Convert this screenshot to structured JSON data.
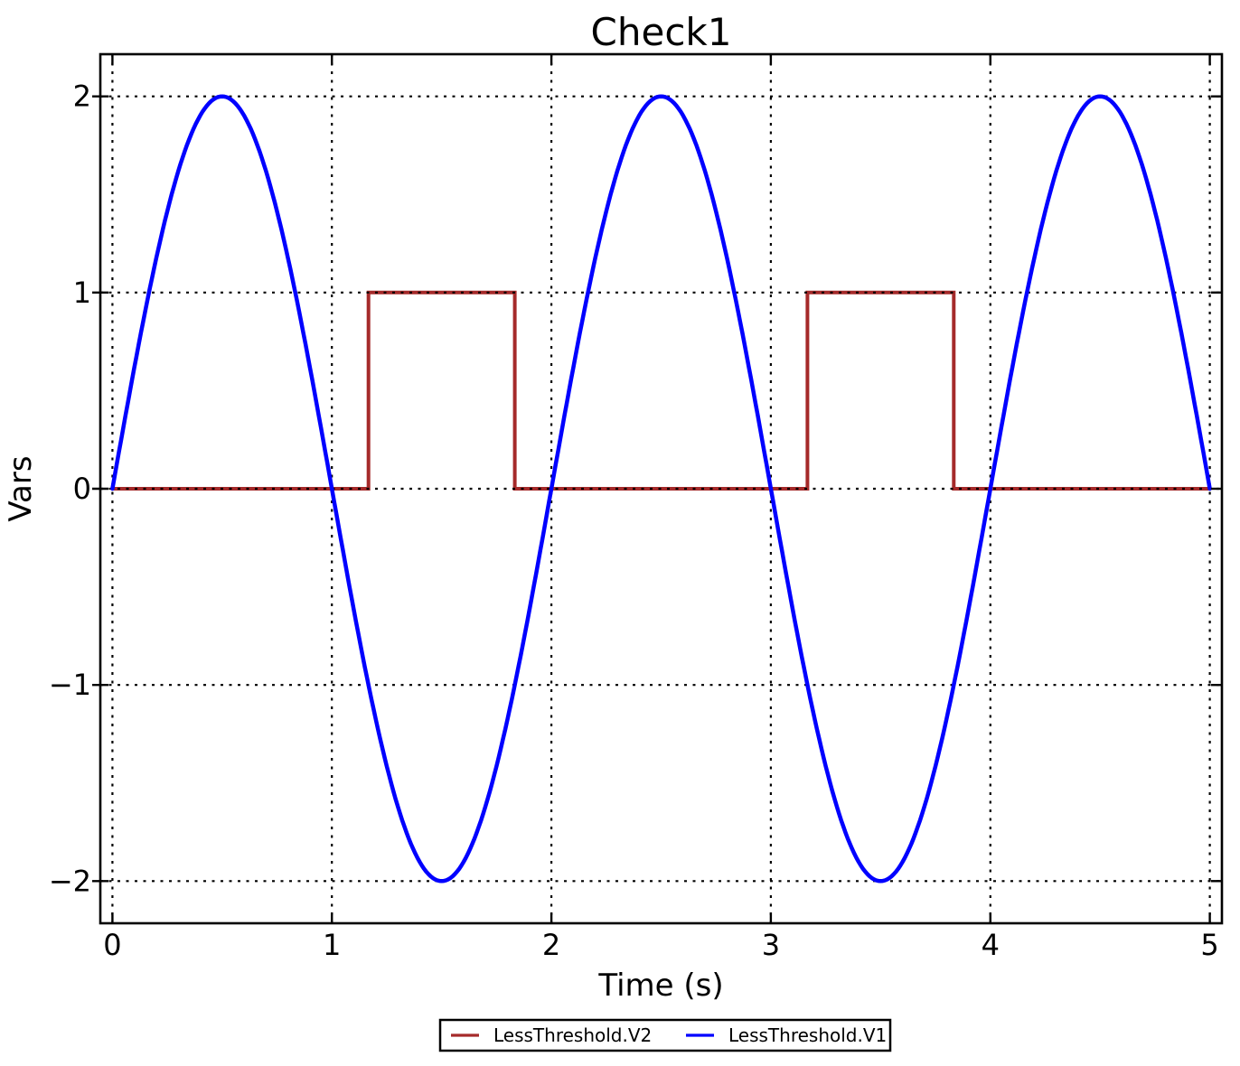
{
  "chart_data": {
    "type": "line",
    "title": "Check1",
    "xlabel": "Time (s)",
    "ylabel": "Vars",
    "xlim": [
      -0.055,
      5.055
    ],
    "ylim": [
      -2.215,
      2.215
    ],
    "xticks": [
      0,
      1,
      2,
      3,
      4,
      5
    ],
    "yticks": [
      -2,
      -1,
      0,
      1,
      2
    ],
    "xtick_labels": [
      "0",
      "1",
      "2",
      "3",
      "4",
      "5"
    ],
    "ytick_labels": [
      "−2",
      "−1",
      "0",
      "1",
      "2"
    ],
    "grid": {
      "visible": true,
      "style": "dotted",
      "color": "#000000"
    },
    "frame_color": "#000000",
    "background": "#ffffff",
    "legend": {
      "position": "bottom-center-outside",
      "border_color": "#000000",
      "background": "#ffffff",
      "entries": [
        "LessThreshold.V2",
        "LessThreshold.V1"
      ]
    },
    "series": [
      {
        "name": "LessThreshold.V2",
        "color": "#a52a2a",
        "shape": "step",
        "points_xy": [
          [
            0,
            0
          ],
          [
            1.1667,
            0
          ],
          [
            1.1667,
            1
          ],
          [
            1.8333,
            1
          ],
          [
            1.8333,
            0
          ],
          [
            3.1667,
            0
          ],
          [
            3.1667,
            1
          ],
          [
            3.8333,
            1
          ],
          [
            3.8333,
            0
          ],
          [
            5,
            0
          ]
        ]
      },
      {
        "name": "LessThreshold.V1",
        "color": "#0000ff",
        "shape": "sine",
        "formula": "y(t) = 2*sin(pi*t)",
        "amplitude": 2,
        "period": 2,
        "phase": 0,
        "offset": 0,
        "t_start": 0,
        "t_end": 5,
        "peaks_at_t": [
          0.5,
          2.5,
          4.5
        ],
        "troughs_at_t": [
          1.5,
          3.5
        ],
        "zero_crossings_at_t": [
          0,
          1,
          2,
          3,
          4,
          5
        ]
      }
    ]
  }
}
